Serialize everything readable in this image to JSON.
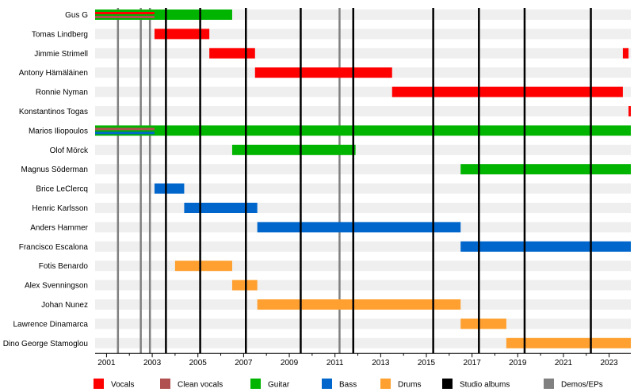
{
  "chart_data": {
    "type": "timeline",
    "x_range": [
      2000.5,
      2023.95
    ],
    "members": [
      "Gus G",
      "Tomas Lindberg",
      "Jimmie Strimell",
      "Antony Hämäläinen",
      "Ronnie Nyman",
      "Konstantinos Togas",
      "Marios Iliopoulos",
      "Olof Mörck",
      "Magnus Söderman",
      "Brice LeClercq",
      "Henric Karlsson",
      "Anders Hammer",
      "Francisco Escalona",
      "Fotis Benardo",
      "Alex Svenningson",
      "Johan Nunez",
      "Lawrence Dinamarca",
      "Dino George Stamoglou"
    ],
    "x_ticks": [
      "2001",
      "2003",
      "2005",
      "2007",
      "2009",
      "2011",
      "2013",
      "2015",
      "2017",
      "2019",
      "2021",
      "2023"
    ],
    "x_tick_values": [
      2001,
      2003,
      2005,
      2007,
      2009,
      2011,
      2013,
      2015,
      2017,
      2019,
      2021,
      2023
    ],
    "role_colors": {
      "Vocals": "#ff0000",
      "Clean vocals": "#b05050",
      "Guitar": "#00b400",
      "Bass": "#0066cc",
      "Drums": "#ffa030",
      "Studio albums": "#000000",
      "Demos/EPs": "#808080"
    },
    "legend": [
      "Vocals",
      "Clean vocals",
      "Guitar",
      "Bass",
      "Drums",
      "Studio albums",
      "Demos/EPs"
    ],
    "bars": [
      {
        "member": "Gus G",
        "role": "Guitar",
        "start": 2000.5,
        "end": 2006.5
      },
      {
        "member": "Gus G",
        "role": "Vocals",
        "start": 2000.5,
        "end": 2003.1,
        "part": "top"
      },
      {
        "member": "Gus G",
        "role": "Clean vocals",
        "start": 2000.5,
        "end": 2003.1,
        "part": "bottom"
      },
      {
        "member": "Tomas Lindberg",
        "role": "Vocals",
        "start": 2003.1,
        "end": 2005.5
      },
      {
        "member": "Jimmie Strimell",
        "role": "Vocals",
        "start": 2005.5,
        "end": 2007.5
      },
      {
        "member": "Jimmie Strimell",
        "role": "Vocals",
        "start": 2023.6,
        "end": 2023.85
      },
      {
        "member": "Antony Hämäläinen",
        "role": "Vocals",
        "start": 2007.5,
        "end": 2013.5
      },
      {
        "member": "Ronnie Nyman",
        "role": "Vocals",
        "start": 2013.5,
        "end": 2023.6
      },
      {
        "member": "Konstantinos Togas",
        "role": "Vocals",
        "start": 2023.85,
        "end": 2023.95
      },
      {
        "member": "Marios Iliopoulos",
        "role": "Guitar",
        "start": 2000.5,
        "end": 2023.95
      },
      {
        "member": "Marios Iliopoulos",
        "role": "Clean vocals",
        "start": 2000.5,
        "end": 2003.1,
        "part": "top"
      },
      {
        "member": "Marios Iliopoulos",
        "role": "Bass",
        "start": 2000.5,
        "end": 2003.1,
        "part": "bottom"
      },
      {
        "member": "Olof Mörck",
        "role": "Guitar",
        "start": 2006.5,
        "end": 2011.9
      },
      {
        "member": "Magnus Söderman",
        "role": "Guitar",
        "start": 2016.5,
        "end": 2023.95
      },
      {
        "member": "Brice LeClercq",
        "role": "Bass",
        "start": 2003.1,
        "end": 2004.4
      },
      {
        "member": "Henric Karlsson",
        "role": "Bass",
        "start": 2004.4,
        "end": 2007.6
      },
      {
        "member": "Anders Hammer",
        "role": "Bass",
        "start": 2007.6,
        "end": 2016.5
      },
      {
        "member": "Francisco Escalona",
        "role": "Bass",
        "start": 2016.5,
        "end": 2023.95
      },
      {
        "member": "Fotis Benardo",
        "role": "Drums",
        "start": 2004.0,
        "end": 2006.5
      },
      {
        "member": "Alex Svenningson",
        "role": "Drums",
        "start": 2006.5,
        "end": 2007.6
      },
      {
        "member": "Johan Nunez",
        "role": "Drums",
        "start": 2007.6,
        "end": 2016.5
      },
      {
        "member": "Lawrence Dinamarca",
        "role": "Drums",
        "start": 2016.5,
        "end": 2018.5
      },
      {
        "member": "Dino George Stamoglou",
        "role": "Drums",
        "start": 2018.5,
        "end": 2023.95
      }
    ],
    "studio_albums": [
      2003.6,
      2005.1,
      2007.1,
      2009.5,
      2011.8,
      2015.3,
      2017.3,
      2019.3,
      2022.2
    ],
    "demos_eps": [
      2001.5,
      2002.5,
      2002.9,
      2011.2
    ]
  }
}
